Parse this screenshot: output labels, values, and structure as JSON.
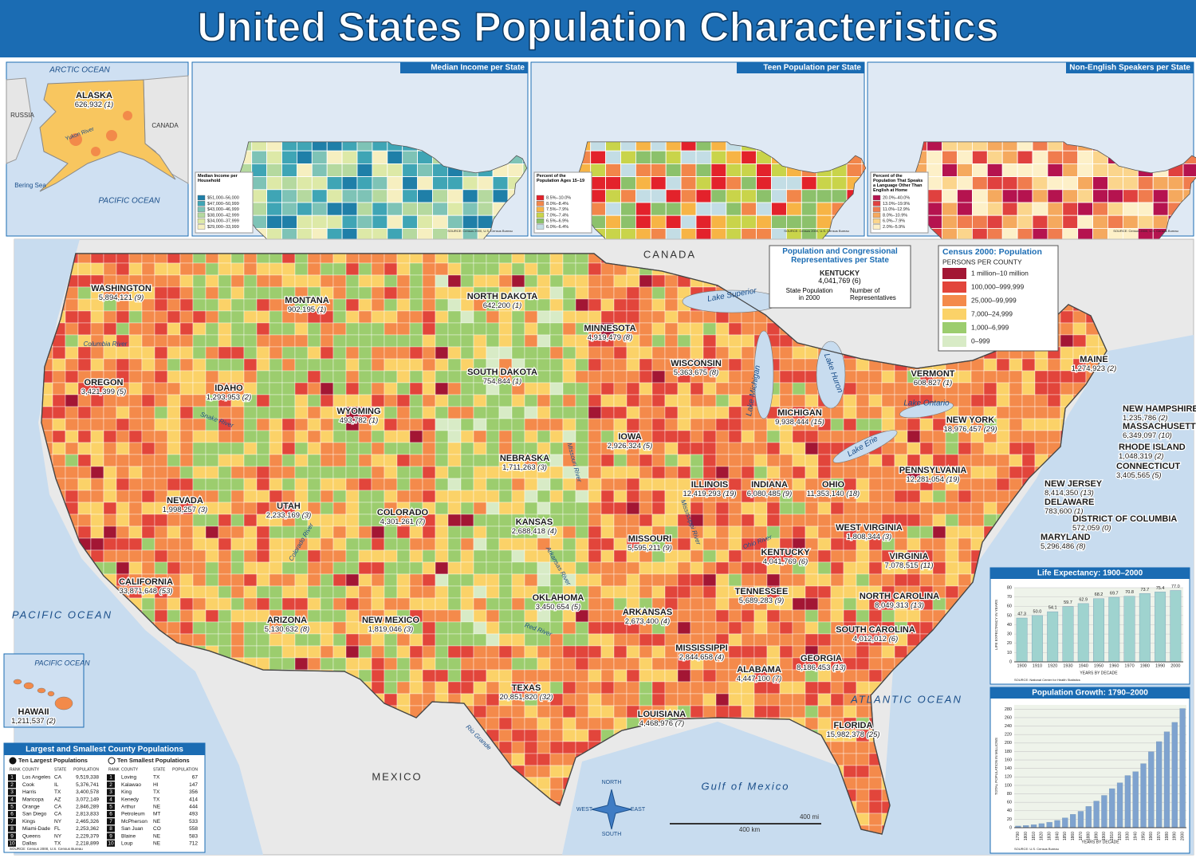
{
  "title": "United States Population Characteristics",
  "insets": [
    {
      "title": "Median Income per State",
      "legend_title": "Median Income per Household",
      "legend": [
        {
          "label": "$51,000–56,000",
          "color": "#1f7fa8"
        },
        {
          "label": "$47,000–50,999",
          "color": "#3fa5b5"
        },
        {
          "label": "$43,000–46,999",
          "color": "#7ec3b6"
        },
        {
          "label": "$38,000–42,999",
          "color": "#b5d99f"
        },
        {
          "label": "$34,000–37,999",
          "color": "#dde9a7"
        },
        {
          "label": "$29,000–33,999",
          "color": "#f6efc0"
        }
      ]
    },
    {
      "title": "Teen Population per State",
      "legend_title": "Percent of the Population Ages 15–19",
      "legend": [
        {
          "label": "8.5%–10.0%",
          "color": "#e3222b"
        },
        {
          "label": "8.0%–8.4%",
          "color": "#f2864a"
        },
        {
          "label": "7.5%–7.9%",
          "color": "#f7b445"
        },
        {
          "label": "7.0%–7.4%",
          "color": "#c9d44a"
        },
        {
          "label": "6.5%–6.9%",
          "color": "#8cc16b"
        },
        {
          "label": "6.0%–6.4%",
          "color": "#c3dde5"
        }
      ]
    },
    {
      "title": "Non-English Speakers per State",
      "legend_title": "Percent of the Population That Speaks a Language Other Than English at Home",
      "legend": [
        {
          "label": "20.0%–40.0%",
          "color": "#b5134f"
        },
        {
          "label": "13.0%–19.9%",
          "color": "#e0413f"
        },
        {
          "label": "11.0%–12.9%",
          "color": "#f07c4e"
        },
        {
          "label": "8.0%–10.9%",
          "color": "#f5a95e"
        },
        {
          "label": "6.0%–7.9%",
          "color": "#fbd58c"
        },
        {
          "label": "2.0%–5.9%",
          "color": "#fdf0c8"
        }
      ]
    }
  ],
  "inset_source": "SOURCE: Census 2000, U.S. Census Bureau",
  "key": {
    "title": "Population and Congressional Representatives per State",
    "state": "KENTUCKY",
    "population": "4,041,769",
    "reps": "(6)",
    "population_note": "State Population in 2000",
    "reps_note": "Number of Representatives"
  },
  "legend": {
    "title": "Census 2000: Population",
    "subtitle": "PERSONS PER COUNTY",
    "items": [
      {
        "label": "1 million–10 million",
        "color": "#a31634"
      },
      {
        "label": "100,000–999,999",
        "color": "#e2453b"
      },
      {
        "label": "25,000–99,999",
        "color": "#f48a4b"
      },
      {
        "label": "7,000–24,999",
        "color": "#fbd268"
      },
      {
        "label": "1,000–6,999",
        "color": "#9ccd6e"
      },
      {
        "label": "0–999",
        "color": "#d8ebc6"
      }
    ]
  },
  "states": [
    {
      "name": "WASHINGTON",
      "population": "5,894,121",
      "reps": "(9)"
    },
    {
      "name": "OREGON",
      "population": "3,421,399",
      "reps": "(5)"
    },
    {
      "name": "CALIFORNIA",
      "population": "33,871,648",
      "reps": "(53)"
    },
    {
      "name": "NEVADA",
      "population": "1,998,257",
      "reps": "(3)"
    },
    {
      "name": "IDAHO",
      "population": "1,293,953",
      "reps": "(2)"
    },
    {
      "name": "MONTANA",
      "population": "902,195",
      "reps": "(1)"
    },
    {
      "name": "WYOMING",
      "population": "493,782",
      "reps": "(1)"
    },
    {
      "name": "UTAH",
      "population": "2,233,169",
      "reps": "(3)"
    },
    {
      "name": "ARIZONA",
      "population": "5,130,632",
      "reps": "(8)"
    },
    {
      "name": "COLORADO",
      "population": "4,301,261",
      "reps": "(7)"
    },
    {
      "name": "NEW MEXICO",
      "population": "1,819,046",
      "reps": "(3)"
    },
    {
      "name": "NORTH DAKOTA",
      "population": "642,200",
      "reps": "(1)"
    },
    {
      "name": "SOUTH DAKOTA",
      "population": "754,844",
      "reps": "(1)"
    },
    {
      "name": "NEBRASKA",
      "population": "1,711,263",
      "reps": "(3)"
    },
    {
      "name": "KANSAS",
      "population": "2,688,418",
      "reps": "(4)"
    },
    {
      "name": "OKLAHOMA",
      "population": "3,450,654",
      "reps": "(5)"
    },
    {
      "name": "TEXAS",
      "population": "20,851,820",
      "reps": "(32)"
    },
    {
      "name": "MINNESOTA",
      "population": "4,919,479",
      "reps": "(8)"
    },
    {
      "name": "IOWA",
      "population": "2,926,324",
      "reps": "(5)"
    },
    {
      "name": "MISSOURI",
      "population": "5,595,211",
      "reps": "(9)"
    },
    {
      "name": "ARKANSAS",
      "population": "2,673,400",
      "reps": "(4)"
    },
    {
      "name": "LOUISIANA",
      "population": "4,468,976",
      "reps": "(7)"
    },
    {
      "name": "WISCONSIN",
      "population": "5,363,675",
      "reps": "(8)"
    },
    {
      "name": "ILLINOIS",
      "population": "12,419,293",
      "reps": "(19)"
    },
    {
      "name": "MISSISSIPPI",
      "population": "2,844,658",
      "reps": "(4)"
    },
    {
      "name": "MICHIGAN",
      "population": "9,938,444",
      "reps": "(15)"
    },
    {
      "name": "INDIANA",
      "population": "6,080,485",
      "reps": "(9)"
    },
    {
      "name": "OHIO",
      "population": "11,353,140",
      "reps": "(18)"
    },
    {
      "name": "KENTUCKY",
      "population": "4,041,769",
      "reps": "(6)"
    },
    {
      "name": "TENNESSEE",
      "population": "5,689,283",
      "reps": "(9)"
    },
    {
      "name": "ALABAMA",
      "population": "4,447,100",
      "reps": "(7)"
    },
    {
      "name": "GEORGIA",
      "population": "8,186,453",
      "reps": "(13)"
    },
    {
      "name": "FLORIDA",
      "population": "15,982,378",
      "reps": "(25)"
    },
    {
      "name": "SOUTH CAROLINA",
      "population": "4,012,012",
      "reps": "(6)"
    },
    {
      "name": "NORTH CAROLINA",
      "population": "8,049,313",
      "reps": "(13)"
    },
    {
      "name": "VIRGINIA",
      "population": "7,078,515",
      "reps": "(11)"
    },
    {
      "name": "WEST VIRGINIA",
      "population": "1,808,344",
      "reps": "(3)"
    },
    {
      "name": "PENNSYLVANIA",
      "population": "12,281,054",
      "reps": "(19)"
    },
    {
      "name": "NEW YORK",
      "population": "18,976,457",
      "reps": "(29)"
    },
    {
      "name": "VERMONT",
      "population": "608,827",
      "reps": "(1)"
    },
    {
      "name": "MAINE",
      "population": "1,274,923",
      "reps": "(2)"
    },
    {
      "name": "NEW HAMPSHIRE",
      "population": "1,235,786",
      "reps": "(2)"
    },
    {
      "name": "MASSACHUSETTS",
      "population": "6,349,097",
      "reps": "(10)"
    },
    {
      "name": "RHODE ISLAND",
      "population": "1,048,319",
      "reps": "(2)"
    },
    {
      "name": "CONNECTICUT",
      "population": "3,405,565",
      "reps": "(5)"
    },
    {
      "name": "NEW JERSEY",
      "population": "8,414,350",
      "reps": "(13)"
    },
    {
      "name": "DELAWARE",
      "population": "783,600",
      "reps": "(1)"
    },
    {
      "name": "DISTRICT OF COLUMBIA",
      "population": "572,059",
      "reps": "(0)"
    },
    {
      "name": "MARYLAND",
      "population": "5,296,486",
      "reps": "(8)"
    },
    {
      "name": "ALASKA",
      "population": "626,932",
      "reps": "(1)"
    },
    {
      "name": "HAWAII",
      "population": "1,211,537",
      "reps": "(2)"
    }
  ],
  "geo_labels": [
    "ARCTIC OCEAN",
    "RUSSIA",
    "CANADA",
    "Yukon River",
    "Bering Sea",
    "PACIFIC OCEAN",
    "CANADA",
    "MEXICO",
    "PACIFIC OCEAN",
    "ATLANTIC OCEAN",
    "Gulf of Mexico",
    "Lake Superior",
    "Lake Michigan",
    "Lake Huron",
    "Lake Ontario",
    "Lake Erie",
    "Columbia River",
    "Snake River",
    "Colorado River",
    "Missouri River",
    "Mississippi River",
    "Ohio River",
    "Arkansas River",
    "Red River",
    "Rio Grande",
    "PACIFIC OCEAN",
    "NORTH",
    "SOUTH",
    "EAST",
    "WEST",
    "400 mi",
    "400 km"
  ],
  "county_table": {
    "title": "Largest and Smallest County Populations",
    "largest_title": "Ten Largest Populations",
    "smallest_title": "Ten Smallest Populations",
    "headers": [
      "RANK",
      "COUNTY",
      "STATE",
      "POPULATION"
    ],
    "largest": [
      [
        "1",
        "Los Angeles",
        "CA",
        "9,519,338"
      ],
      [
        "2",
        "Cook",
        "IL",
        "5,376,741"
      ],
      [
        "3",
        "Harris",
        "TX",
        "3,400,578"
      ],
      [
        "4",
        "Maricopa",
        "AZ",
        "3,072,149"
      ],
      [
        "5",
        "Orange",
        "CA",
        "2,846,289"
      ],
      [
        "6",
        "San Diego",
        "CA",
        "2,813,833"
      ],
      [
        "7",
        "Kings",
        "NY",
        "2,465,326"
      ],
      [
        "8",
        "Miami-Dade",
        "FL",
        "2,253,362"
      ],
      [
        "9",
        "Queens",
        "NY",
        "2,229,379"
      ],
      [
        "10",
        "Dallas",
        "TX",
        "2,218,899"
      ]
    ],
    "smallest": [
      [
        "1",
        "Loving",
        "TX",
        "67"
      ],
      [
        "2",
        "Kalawao",
        "HI",
        "147"
      ],
      [
        "3",
        "King",
        "TX",
        "356"
      ],
      [
        "4",
        "Kenedy",
        "TX",
        "414"
      ],
      [
        "5",
        "Arthur",
        "NE",
        "444"
      ],
      [
        "6",
        "Petroleum",
        "MT",
        "493"
      ],
      [
        "7",
        "McPherson",
        "NE",
        "533"
      ],
      [
        "8",
        "San Juan",
        "CO",
        "558"
      ],
      [
        "9",
        "Blaine",
        "NE",
        "583"
      ],
      [
        "10",
        "Loup",
        "NE",
        "712"
      ]
    ],
    "source": "SOURCE: Census 2000, U.S. Census Bureau"
  },
  "chart_data": [
    {
      "type": "bar",
      "title": "Life Expectancy: 1900–2000",
      "ylabel": "LIFE EXPECTANCY IN YEARS",
      "xlabel": "YEARS BY DECADE",
      "categories": [
        "1900",
        "1910",
        "1920",
        "1930",
        "1940",
        "1950",
        "1960",
        "1970",
        "1980",
        "1990",
        "2000"
      ],
      "values": [
        47.3,
        50.0,
        54.1,
        59.7,
        62.9,
        68.2,
        69.7,
        70.8,
        73.7,
        75.4,
        77.0
      ],
      "value_labels": [
        "47.3",
        "50.0",
        "54.1",
        "59.7",
        "62.9",
        "68.2",
        "69.7",
        "70.8",
        "73.7",
        "75.4",
        "77.0"
      ],
      "color": "#9fd3cf",
      "ylim": [
        0,
        80
      ],
      "yticks": [
        0,
        10,
        20,
        30,
        40,
        50,
        60,
        70,
        80
      ],
      "grid": true,
      "source": "SOURCE: National Center for Health Statistics"
    },
    {
      "type": "bar",
      "title": "Population Growth: 1790–2000",
      "ylabel": "TOTAL POPULATION IN MILLIONS",
      "xlabel": "YEARS BY DECADE",
      "categories": [
        "1790",
        "1800",
        "1810",
        "1820",
        "1830",
        "1840",
        "1850",
        "1860",
        "1870",
        "1880",
        "1890",
        "1900",
        "1910",
        "1920",
        "1930",
        "1940",
        "1950",
        "1960",
        "1970",
        "1980",
        "1990",
        "2000"
      ],
      "values": [
        3.9,
        5.3,
        7.2,
        9.6,
        12.9,
        17.1,
        23.2,
        31.4,
        38.6,
        50.2,
        62.9,
        76.2,
        92.2,
        106.0,
        123.2,
        132.2,
        151.3,
        179.3,
        203.3,
        226.5,
        248.7,
        281.4
      ],
      "color": "#7fa3cf",
      "ylim": [
        0,
        290
      ],
      "yticks": [
        0,
        20,
        40,
        60,
        80,
        100,
        120,
        140,
        160,
        180,
        200,
        220,
        240,
        260,
        280
      ],
      "grid": true,
      "source": "SOURCE: U.S. Census Bureau"
    }
  ]
}
